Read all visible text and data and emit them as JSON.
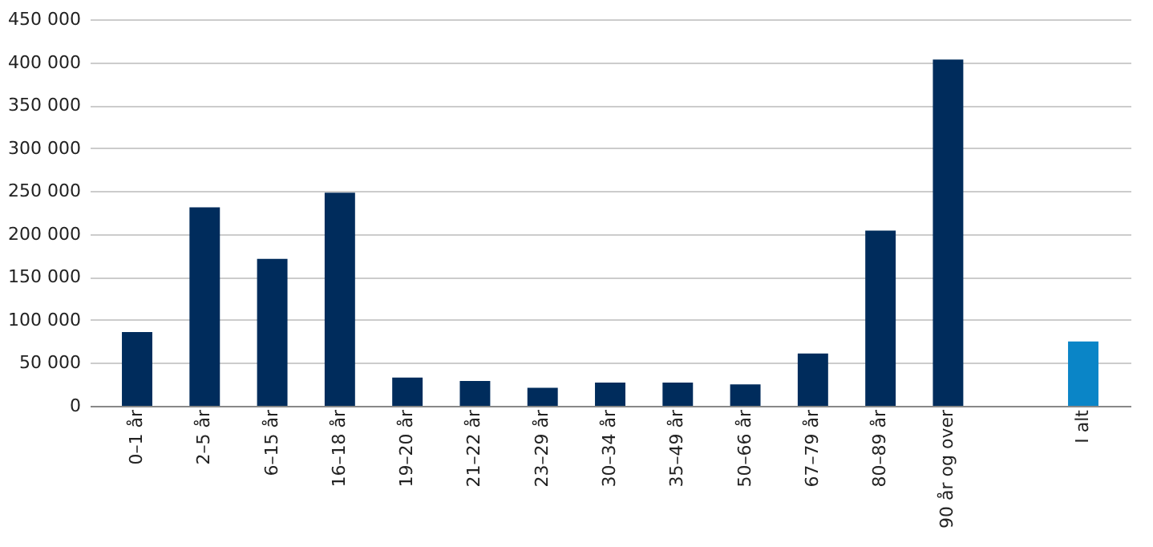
{
  "chart_data": {
    "type": "bar",
    "categories": [
      "0–1 år",
      "2–5 år",
      "6–15 år",
      "16–18 år",
      "19–20 år",
      "21–22 år",
      "23–29 år",
      "30–34 år",
      "35–49 år",
      "50–66 år",
      "67–79 år",
      "80–89 år",
      "90 år og over",
      null,
      "I alt"
    ],
    "values": [
      86000,
      231000,
      171000,
      248000,
      33000,
      29000,
      21000,
      27000,
      27000,
      25000,
      61000,
      204000,
      403000,
      null,
      75000
    ],
    "colors": [
      "#002c5c",
      "#002c5c",
      "#002c5c",
      "#002c5c",
      "#002c5c",
      "#002c5c",
      "#002c5c",
      "#002c5c",
      "#002c5c",
      "#002c5c",
      "#002c5c",
      "#002c5c",
      "#002c5c",
      null,
      "#0a85c7"
    ],
    "ylim": [
      0,
      450000
    ],
    "yticks": [
      0,
      {
        "value": 50000,
        "label": "50 000"
      },
      {
        "value": 100000,
        "label": "100 000"
      },
      {
        "value": 150000,
        "label": "150 000"
      },
      {
        "value": 200000,
        "label": "200 000"
      },
      {
        "value": 250000,
        "label": "250 000"
      },
      {
        "value": 300000,
        "label": "300 000"
      },
      {
        "value": 350000,
        "label": "350 000"
      },
      {
        "value": 400000,
        "label": "400 000"
      },
      {
        "value": 450000,
        "label": "450 000"
      }
    ],
    "grid": "y"
  }
}
